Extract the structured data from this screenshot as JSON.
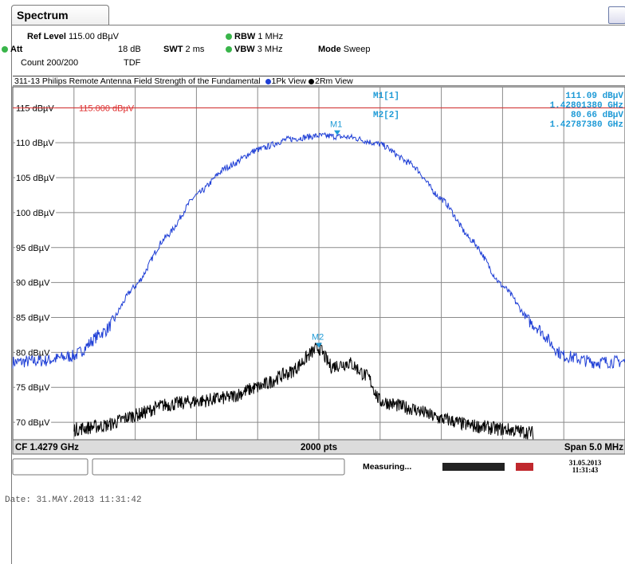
{
  "tab_label": "Spectrum",
  "settings": {
    "ref_level_label": "Ref Level",
    "ref_level_value": "115.00 dBµV",
    "att_label": "Att",
    "att_value": "18 dB",
    "swt_label": "SWT",
    "swt_value": "2 ms",
    "rbw_label": "RBW",
    "rbw_value": "1 MHz",
    "vbw_label": "VBW",
    "vbw_value": "3 MHz",
    "mode_label": "Mode",
    "mode_value": "Sweep",
    "count_text": "Count 200/200",
    "tdf_text": "TDF"
  },
  "plot_title": "311-13 Philips Remote Antenna Field Strength of the Fundamental",
  "trace_legend": [
    {
      "label": "1Pk View",
      "color": "#1f3fd6"
    },
    {
      "label": "2Rm View",
      "color": "#000000"
    }
  ],
  "markers_table": [
    {
      "name": "M1[1]",
      "level": "111.09 dBµV",
      "freq": "1.42801380 GHz"
    },
    {
      "name": "M2[2]",
      "level": "80.66 dBµV",
      "freq": "1.42787380 GHz"
    }
  ],
  "ref_line_label": "115.000 dBµV",
  "chart_data": {
    "type": "line",
    "title": "311-13 Philips Remote Antenna Field Strength of the Fundamental",
    "xlabel": "",
    "ylabel": "",
    "center_frequency": "CF 1.4279 GHz",
    "points": "2000 pts",
    "span": "Span 5.0 MHz",
    "ylim": [
      67.5,
      118
    ],
    "xlim": [
      0,
      10
    ],
    "grid": true,
    "y_ticks": [
      "115 dBµV",
      "110 dBµV",
      "105 dBµV",
      "100 dBµV",
      "95 dBµV",
      "90 dBµV",
      "85 dBµV",
      "80 dBµV",
      "75 dBµV",
      "70 dBµV"
    ],
    "y_tick_values": [
      115,
      110,
      105,
      100,
      95,
      90,
      85,
      80,
      75,
      70
    ],
    "reference_line": {
      "value": 115.0,
      "label": "115.000 dBµV",
      "color": "#e03030"
    },
    "series": [
      {
        "name": "1Pk View",
        "color": "#1f3fd6",
        "x": [
          0,
          0.5,
          1.0,
          1.5,
          2.0,
          2.5,
          3.0,
          3.5,
          4.0,
          4.5,
          5.0,
          5.5,
          6.0,
          6.5,
          7.0,
          7.5,
          8.0,
          8.5,
          9.0,
          9.5,
          10
        ],
        "y": [
          78.6,
          78.8,
          79.5,
          83.0,
          89.5,
          96.5,
          102.5,
          106.5,
          109.0,
          110.5,
          111.0,
          110.8,
          109.8,
          107.0,
          102.0,
          96.0,
          89.5,
          84.0,
          79.5,
          78.6,
          78.7
        ]
      },
      {
        "name": "2Rm View",
        "color": "#000000",
        "x": [
          1.0,
          1.5,
          2.0,
          2.5,
          3.0,
          3.5,
          4.0,
          4.5,
          5.0,
          5.2,
          5.5,
          5.8,
          6.0,
          6.5,
          7.0,
          7.5,
          8.0,
          8.5
        ],
        "y": [
          69.0,
          69.5,
          71.0,
          72.5,
          73.0,
          73.5,
          75.0,
          77.0,
          80.66,
          78.0,
          78.5,
          76.5,
          73.0,
          72.0,
          70.5,
          69.5,
          69.0,
          68.5
        ]
      }
    ],
    "markers": [
      {
        "name": "M1",
        "x": 5.3,
        "y": 111.09
      },
      {
        "name": "M2",
        "x": 5.0,
        "y": 80.66
      }
    ]
  },
  "footer": {
    "cf": "CF 1.4279 GHz",
    "pts": "2000 pts",
    "span": "Span 5.0 MHz"
  },
  "status": {
    "measuring": "Measuring...",
    "date": "31.05.2013",
    "time": "11:31:43"
  },
  "date_footer": "Date: 31.MAY.2013  11:31:42"
}
